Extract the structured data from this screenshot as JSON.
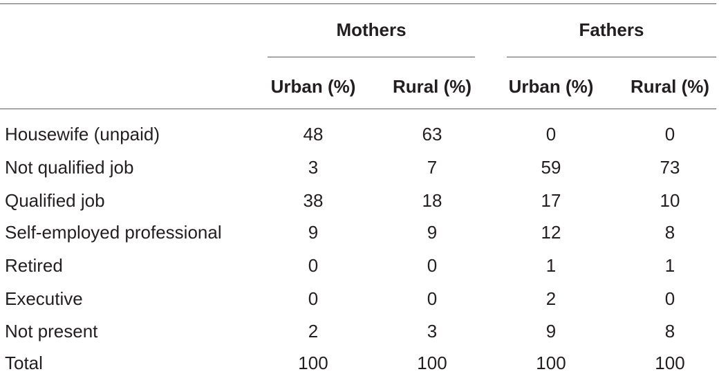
{
  "table": {
    "groups": [
      {
        "label": "Mothers"
      },
      {
        "label": "Fathers"
      }
    ],
    "columns": [
      {
        "label": "Urban (%)"
      },
      {
        "label": "Rural (%)"
      },
      {
        "label": "Urban (%)"
      },
      {
        "label": "Rural (%)"
      }
    ],
    "rows": [
      {
        "label": "Housewife (unpaid)",
        "values": [
          "48",
          "63",
          "0",
          "0"
        ]
      },
      {
        "label": "Not qualified job",
        "values": [
          "3",
          "7",
          "59",
          "73"
        ]
      },
      {
        "label": "Qualified job",
        "values": [
          "38",
          "18",
          "17",
          "10"
        ]
      },
      {
        "label": "Self-employed professional",
        "values": [
          "9",
          "9",
          "12",
          "8"
        ]
      },
      {
        "label": "Retired",
        "values": [
          "0",
          "0",
          "1",
          "1"
        ]
      },
      {
        "label": "Executive",
        "values": [
          "0",
          "0",
          "2",
          "0"
        ]
      },
      {
        "label": "Not present",
        "values": [
          "2",
          "3",
          "9",
          "8"
        ]
      },
      {
        "label": "Total",
        "values": [
          "100",
          "100",
          "100",
          "100"
        ]
      }
    ]
  }
}
